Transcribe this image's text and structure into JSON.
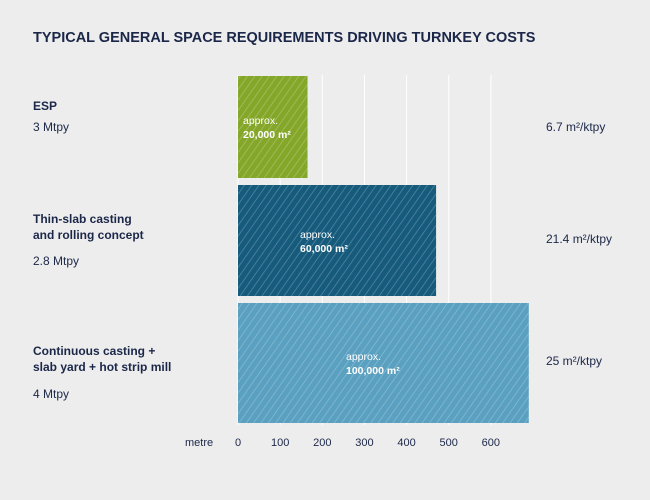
{
  "chart_data": {
    "type": "bar",
    "orientation": "horizontal",
    "title": "TYPICAL GENERAL SPACE REQUIREMENTS DRIVING TURNKEY COSTS",
    "x_label": "metre",
    "categories": [
      [
        "ESP"
      ],
      [
        "Thin-slab casting",
        "and rolling concept"
      ],
      [
        "Continuous casting +",
        "slab yard + hot strip mill"
      ]
    ],
    "capacities": [
      "3 Mtpy",
      "2.8 Mtpy",
      "4 Mtpy"
    ],
    "specific_labels": [
      "6.7 m²/ktpy",
      "21.4 m²/ktpy",
      "25 m²/ktpy"
    ],
    "area_prefix": "approx.",
    "area_labels": [
      "20,000 m²",
      "60,000 m²",
      "100,000 m²"
    ],
    "values": [
      165,
      470,
      690
    ],
    "colors": [
      "#84a72a",
      "#165a7c",
      "#5aa0c0"
    ],
    "xlim": [
      0,
      700
    ],
    "xticks": [
      0,
      100,
      200,
      300,
      400,
      500,
      600
    ],
    "grid": true
  }
}
